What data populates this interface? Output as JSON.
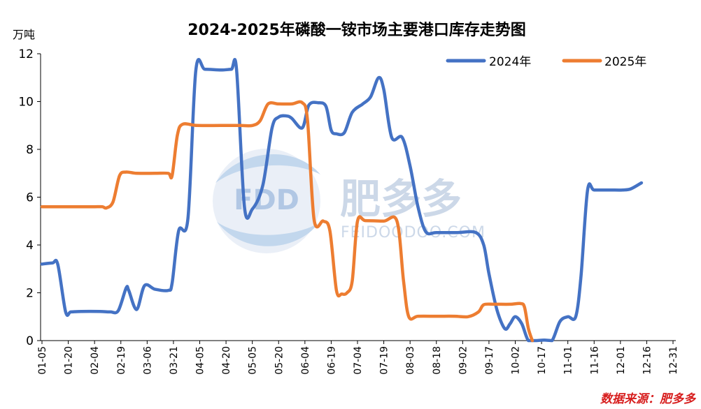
{
  "chart_data": {
    "type": "line",
    "title": "2024-2025年磷酸一铵市场主要港口库存走势图",
    "ylabel": "万吨",
    "xlabel": "",
    "ylim": [
      0,
      12
    ],
    "yticks": [
      0,
      2,
      4,
      6,
      8,
      10,
      12
    ],
    "grid": false,
    "legend_position": "top-right",
    "categories": [
      "01-05",
      "01-20",
      "02-04",
      "02-19",
      "03-06",
      "03-21",
      "04-05",
      "04-20",
      "05-05",
      "05-20",
      "06-04",
      "06-19",
      "07-04",
      "07-19",
      "08-03",
      "08-18",
      "09-02",
      "09-17",
      "10-02",
      "10-17",
      "11-01",
      "11-16",
      "12-01",
      "12-16",
      "12-31"
    ],
    "series": [
      {
        "name": "2024年",
        "color": "#4472c4",
        "points": [
          [
            0,
            3.2
          ],
          [
            0.4,
            3.25
          ],
          [
            0.6,
            3.2
          ],
          [
            0.9,
            1.2
          ],
          [
            1.1,
            1.2
          ],
          [
            1.5,
            1.22
          ],
          [
            2.2,
            1.22
          ],
          [
            2.6,
            1.2
          ],
          [
            2.9,
            1.25
          ],
          [
            3.2,
            2.2
          ],
          [
            3.3,
            2.1
          ],
          [
            3.6,
            1.3
          ],
          [
            3.9,
            2.3
          ],
          [
            4.3,
            2.15
          ],
          [
            4.8,
            2.1
          ],
          [
            4.95,
            2.4
          ],
          [
            5.2,
            4.6
          ],
          [
            5.55,
            5.1
          ],
          [
            5.85,
            11.3
          ],
          [
            6.2,
            11.35
          ],
          [
            6.8,
            11.32
          ],
          [
            7.2,
            11.35
          ],
          [
            7.4,
            11.35
          ],
          [
            7.7,
            5.6
          ],
          [
            8.0,
            5.5
          ],
          [
            8.4,
            6.5
          ],
          [
            8.75,
            8.9
          ],
          [
            9.0,
            9.35
          ],
          [
            9.3,
            9.4
          ],
          [
            9.5,
            9.3
          ],
          [
            9.9,
            8.9
          ],
          [
            10.15,
            9.85
          ],
          [
            10.5,
            9.95
          ],
          [
            10.8,
            9.8
          ],
          [
            11.0,
            8.8
          ],
          [
            11.2,
            8.65
          ],
          [
            11.5,
            8.7
          ],
          [
            11.8,
            9.55
          ],
          [
            12.2,
            9.9
          ],
          [
            12.5,
            10.2
          ],
          [
            12.8,
            11.0
          ],
          [
            13.0,
            10.5
          ],
          [
            13.3,
            8.5
          ],
          [
            13.7,
            8.5
          ],
          [
            14.0,
            7.3
          ],
          [
            14.3,
            5.6
          ],
          [
            14.6,
            4.55
          ],
          [
            15.0,
            4.52
          ],
          [
            15.8,
            4.52
          ],
          [
            16.5,
            4.52
          ],
          [
            16.8,
            4.0
          ],
          [
            17.0,
            2.8
          ],
          [
            17.3,
            1.3
          ],
          [
            17.6,
            0.5
          ],
          [
            17.8,
            0.7
          ],
          [
            18.0,
            1.0
          ],
          [
            18.25,
            0.7
          ],
          [
            18.5,
            0.0
          ],
          [
            18.8,
            0.0
          ],
          [
            19.1,
            0.02
          ],
          [
            19.4,
            0.0
          ],
          [
            19.7,
            0.8
          ],
          [
            20.0,
            1.0
          ],
          [
            20.3,
            1.0
          ],
          [
            20.5,
            2.7
          ],
          [
            20.75,
            6.3
          ],
          [
            21.0,
            6.3
          ],
          [
            21.6,
            6.3
          ],
          [
            22.1,
            6.3
          ],
          [
            22.4,
            6.35
          ],
          [
            22.8,
            6.6
          ]
        ]
      },
      {
        "name": "2025年",
        "color": "#ed7d31",
        "points": [
          [
            0,
            5.6
          ],
          [
            0.8,
            5.6
          ],
          [
            1.6,
            5.6
          ],
          [
            2.0,
            5.6
          ],
          [
            2.3,
            5.6
          ],
          [
            2.45,
            5.55
          ],
          [
            2.7,
            5.8
          ],
          [
            2.95,
            6.9
          ],
          [
            3.2,
            7.05
          ],
          [
            3.6,
            7.0
          ],
          [
            4.3,
            7.0
          ],
          [
            4.8,
            7.0
          ],
          [
            4.95,
            6.9
          ],
          [
            5.15,
            8.6
          ],
          [
            5.35,
            9.05
          ],
          [
            5.9,
            9.0
          ],
          [
            6.8,
            9.0
          ],
          [
            7.5,
            9.0
          ],
          [
            8.0,
            9.0
          ],
          [
            8.3,
            9.2
          ],
          [
            8.6,
            9.9
          ],
          [
            9.0,
            9.9
          ],
          [
            9.5,
            9.9
          ],
          [
            9.9,
            9.95
          ],
          [
            10.1,
            9.2
          ],
          [
            10.35,
            5.05
          ],
          [
            10.7,
            5.0
          ],
          [
            10.95,
            4.6
          ],
          [
            11.2,
            2.1
          ],
          [
            11.4,
            1.95
          ],
          [
            11.6,
            2.0
          ],
          [
            11.8,
            2.5
          ],
          [
            12.0,
            5.0
          ],
          [
            12.3,
            5.02
          ],
          [
            13.0,
            5.0
          ],
          [
            13.5,
            5.0
          ],
          [
            13.75,
            2.5
          ],
          [
            13.95,
            1.0
          ],
          [
            14.3,
            1.02
          ],
          [
            15.0,
            1.02
          ],
          [
            15.7,
            1.02
          ],
          [
            16.2,
            1.0
          ],
          [
            16.6,
            1.2
          ],
          [
            16.8,
            1.5
          ],
          [
            17.2,
            1.52
          ],
          [
            17.8,
            1.52
          ],
          [
            18.2,
            1.55
          ],
          [
            18.35,
            1.4
          ],
          [
            18.5,
            0.5
          ],
          [
            18.65,
            0.0
          ]
        ]
      }
    ]
  },
  "watermark": {
    "logo_text": "FDD",
    "brand": "肥多多",
    "url": "FEIDOODOO.COM"
  },
  "source": "数据来源：肥多多"
}
